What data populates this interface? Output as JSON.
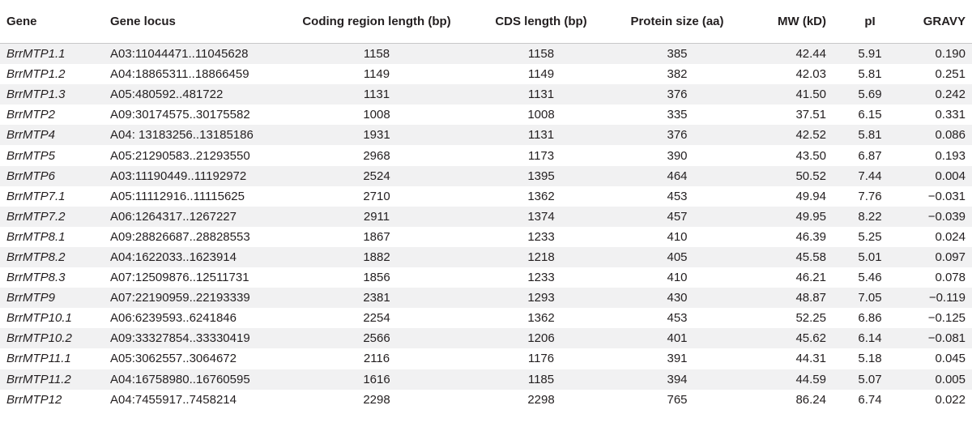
{
  "table": {
    "headers": {
      "gene": "Gene",
      "locus": "Gene locus",
      "coding_length": "Coding region length (bp)",
      "cds_length": "CDS length (bp)",
      "protein_size": "Protein size (aa)",
      "mw": "MW (kD)",
      "pi": "pI",
      "gravy": "GRAVY"
    },
    "rows": [
      {
        "gene": "BrrMTP1.1",
        "locus": "A03:11044471..11045628",
        "coding_length": "1158",
        "cds_length": "1158",
        "protein_size": "385",
        "mw": "42.44",
        "pi": "5.91",
        "gravy": "0.190"
      },
      {
        "gene": "BrrMTP1.2",
        "locus": "A04:18865311..18866459",
        "coding_length": "1149",
        "cds_length": "1149",
        "protein_size": "382",
        "mw": "42.03",
        "pi": "5.81",
        "gravy": "0.251"
      },
      {
        "gene": "BrrMTP1.3",
        "locus": "A05:480592..481722",
        "coding_length": "1131",
        "cds_length": "1131",
        "protein_size": "376",
        "mw": "41.50",
        "pi": "5.69",
        "gravy": "0.242"
      },
      {
        "gene": "BrrMTP2",
        "locus": "A09:30174575..30175582",
        "coding_length": "1008",
        "cds_length": "1008",
        "protein_size": "335",
        "mw": "37.51",
        "pi": "6.15",
        "gravy": "0.331"
      },
      {
        "gene": "BrrMTP4",
        "locus": "A04: 13183256..13185186",
        "coding_length": "1931",
        "cds_length": "1131",
        "protein_size": "376",
        "mw": "42.52",
        "pi": "5.81",
        "gravy": "0.086"
      },
      {
        "gene": "BrrMTP5",
        "locus": "A05:21290583..21293550",
        "coding_length": "2968",
        "cds_length": "1173",
        "protein_size": "390",
        "mw": "43.50",
        "pi": "6.87",
        "gravy": "0.193"
      },
      {
        "gene": "BrrMTP6",
        "locus": "A03:11190449..11192972",
        "coding_length": "2524",
        "cds_length": "1395",
        "protein_size": "464",
        "mw": "50.52",
        "pi": "7.44",
        "gravy": "0.004"
      },
      {
        "gene": "BrrMTP7.1",
        "locus": "A05:11112916..11115625",
        "coding_length": "2710",
        "cds_length": "1362",
        "protein_size": "453",
        "mw": "49.94",
        "pi": "7.76",
        "gravy": "−0.031"
      },
      {
        "gene": "BrrMTP7.2",
        "locus": "A06:1264317..1267227",
        "coding_length": "2911",
        "cds_length": "1374",
        "protein_size": "457",
        "mw": "49.95",
        "pi": "8.22",
        "gravy": "−0.039"
      },
      {
        "gene": "BrrMTP8.1",
        "locus": "A09:28826687..28828553",
        "coding_length": "1867",
        "cds_length": "1233",
        "protein_size": "410",
        "mw": "46.39",
        "pi": "5.25",
        "gravy": "0.024"
      },
      {
        "gene": "BrrMTP8.2",
        "locus": "A04:1622033..1623914",
        "coding_length": "1882",
        "cds_length": "1218",
        "protein_size": "405",
        "mw": "45.58",
        "pi": "5.01",
        "gravy": "0.097"
      },
      {
        "gene": "BrrMTP8.3",
        "locus": "A07:12509876..12511731",
        "coding_length": "1856",
        "cds_length": "1233",
        "protein_size": "410",
        "mw": "46.21",
        "pi": "5.46",
        "gravy": "0.078"
      },
      {
        "gene": "BrrMTP9",
        "locus": "A07:22190959..22193339",
        "coding_length": "2381",
        "cds_length": "1293",
        "protein_size": "430",
        "mw": "48.87",
        "pi": "7.05",
        "gravy": "−0.119"
      },
      {
        "gene": "BrrMTP10.1",
        "locus": "A06:6239593..6241846",
        "coding_length": "2254",
        "cds_length": "1362",
        "protein_size": "453",
        "mw": "52.25",
        "pi": "6.86",
        "gravy": "−0.125"
      },
      {
        "gene": "BrrMTP10.2",
        "locus": "A09:33327854..33330419",
        "coding_length": "2566",
        "cds_length": "1206",
        "protein_size": "401",
        "mw": "45.62",
        "pi": "6.14",
        "gravy": "−0.081"
      },
      {
        "gene": "BrrMTP11.1",
        "locus": "A05:3062557..3064672",
        "coding_length": "2116",
        "cds_length": "1176",
        "protein_size": "391",
        "mw": "44.31",
        "pi": "5.18",
        "gravy": "0.045"
      },
      {
        "gene": "BrrMTP11.2",
        "locus": "A04:16758980..16760595",
        "coding_length": "1616",
        "cds_length": "1185",
        "protein_size": "394",
        "mw": "44.59",
        "pi": "5.07",
        "gravy": "0.005"
      },
      {
        "gene": "BrrMTP12",
        "locus": "A04:7455917..7458214",
        "coding_length": "2298",
        "cds_length": "2298",
        "protein_size": "765",
        "mw": "86.24",
        "pi": "6.74",
        "gravy": "0.022"
      }
    ]
  }
}
